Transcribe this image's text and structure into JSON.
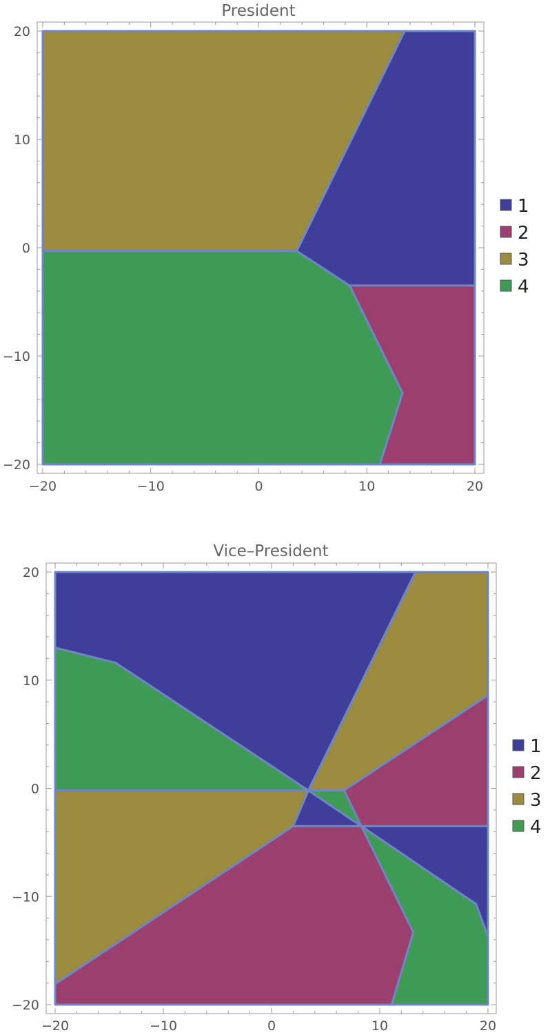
{
  "chart_data": [
    {
      "type": "region",
      "title": "President",
      "xlim": [
        -20,
        20
      ],
      "ylim": [
        -20,
        20
      ],
      "x_ticks": [
        -20,
        -10,
        0,
        10,
        20
      ],
      "y_ticks": [
        -20,
        -10,
        0,
        10,
        20
      ],
      "x_tick_labels": [
        "−20",
        "−10",
        "0",
        "10",
        "20"
      ],
      "y_tick_labels": [
        "−20",
        "−10",
        "0",
        "10",
        "20"
      ],
      "grid": false,
      "legend_position": "right",
      "legend": [
        {
          "label": "1",
          "color": "#3f3f9a"
        },
        {
          "label": "2",
          "color": "#9b3f6e"
        },
        {
          "label": "3",
          "color": "#9b8b3f"
        },
        {
          "label": "4",
          "color": "#3f9a56"
        }
      ],
      "regions": [
        {
          "class": "1",
          "polygon": [
            [
              13.5,
              20
            ],
            [
              20,
              20
            ],
            [
              20,
              -3.5
            ],
            [
              8.4,
              -3.5
            ],
            [
              3.5,
              -0.3
            ]
          ]
        },
        {
          "class": "2",
          "polygon": [
            [
              8.4,
              -3.5
            ],
            [
              20,
              -3.5
            ],
            [
              20,
              -20
            ],
            [
              11.2,
              -20
            ],
            [
              13.3,
              -13.4
            ]
          ]
        },
        {
          "class": "3",
          "polygon": [
            [
              -20,
              20
            ],
            [
              13.5,
              20
            ],
            [
              3.5,
              -0.3
            ],
            [
              -20,
              -0.3
            ]
          ]
        },
        {
          "class": "4",
          "polygon": [
            [
              -20,
              -0.3
            ],
            [
              3.5,
              -0.3
            ],
            [
              8.4,
              -3.5
            ],
            [
              13.3,
              -13.4
            ],
            [
              11.2,
              -20
            ],
            [
              -20,
              -20
            ]
          ]
        }
      ]
    },
    {
      "type": "region",
      "title": "Vice–President",
      "xlim": [
        -20,
        20
      ],
      "ylim": [
        -20,
        20
      ],
      "x_ticks": [
        -20,
        -10,
        0,
        10,
        20
      ],
      "y_ticks": [
        -20,
        -10,
        0,
        10,
        20
      ],
      "x_tick_labels": [
        "−20",
        "−10",
        "0",
        "10",
        "20"
      ],
      "y_tick_labels": [
        "−20",
        "−10",
        "0",
        "10",
        "20"
      ],
      "grid": false,
      "legend_position": "right",
      "legend": [
        {
          "label": "1",
          "color": "#3f3f9a"
        },
        {
          "label": "2",
          "color": "#9b3f6e"
        },
        {
          "label": "3",
          "color": "#9b8b3f"
        },
        {
          "label": "4",
          "color": "#3f9a56"
        }
      ],
      "regions": [
        {
          "class": "1",
          "polygon": [
            [
              -20,
              20
            ],
            [
              13.3,
              20
            ],
            [
              3.4,
              -0.2
            ],
            [
              -14.4,
              11.6
            ],
            [
              -20,
              13
            ]
          ]
        },
        {
          "class": "4",
          "polygon": [
            [
              -20,
              13
            ],
            [
              -14.4,
              11.6
            ],
            [
              3.4,
              -0.2
            ],
            [
              -20,
              -0.2
            ]
          ]
        },
        {
          "class": "3",
          "polygon": [
            [
              13.3,
              20
            ],
            [
              20,
              20
            ],
            [
              20,
              8.6
            ],
            [
              6.7,
              -0.2
            ],
            [
              3.4,
              -0.2
            ]
          ]
        },
        {
          "class": "2",
          "polygon": [
            [
              6.7,
              -0.2
            ],
            [
              20,
              8.6
            ],
            [
              20,
              -3.5
            ],
            [
              8.3,
              -3.5
            ]
          ]
        },
        {
          "class": "4",
          "polygon": [
            [
              3.4,
              -0.2
            ],
            [
              6.7,
              -0.2
            ],
            [
              8.3,
              -3.5
            ]
          ]
        },
        {
          "class": "1",
          "polygon": [
            [
              3.4,
              -0.2
            ],
            [
              8.3,
              -3.5
            ],
            [
              2.0,
              -3.5
            ]
          ]
        },
        {
          "class": "3",
          "polygon": [
            [
              -20,
              -0.2
            ],
            [
              3.4,
              -0.2
            ],
            [
              2.0,
              -3.5
            ],
            [
              -20,
              -18.1
            ]
          ]
        },
        {
          "class": "2",
          "polygon": [
            [
              -20,
              -18.1
            ],
            [
              2.0,
              -3.5
            ],
            [
              8.3,
              -3.5
            ],
            [
              13.1,
              -13.3
            ],
            [
              11.1,
              -20
            ],
            [
              -20,
              -20
            ]
          ]
        },
        {
          "class": "1",
          "polygon": [
            [
              8.3,
              -3.5
            ],
            [
              20,
              -3.5
            ],
            [
              20,
              -13.7
            ],
            [
              18.9,
              -10.7
            ]
          ]
        },
        {
          "class": "4",
          "polygon": [
            [
              8.3,
              -3.5
            ],
            [
              18.9,
              -10.7
            ],
            [
              20,
              -13.7
            ],
            [
              20,
              -20
            ],
            [
              11.1,
              -20
            ],
            [
              13.1,
              -13.3
            ]
          ]
        }
      ]
    }
  ]
}
